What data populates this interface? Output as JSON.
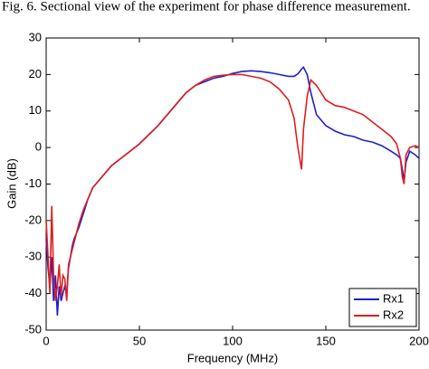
{
  "chart_data": {
    "type": "line",
    "caption": "Fig. 6.    Sectional view of the experiment for phase difference measurement.",
    "xlabel": "Frequency (MHz)",
    "ylabel": "Gain (dB)",
    "xlim": [
      0,
      200
    ],
    "ylim": [
      -50,
      30
    ],
    "xticks": [
      0,
      50,
      100,
      150,
      200
    ],
    "yticks": [
      -50,
      -40,
      -30,
      -20,
      -10,
      0,
      10,
      20,
      30
    ],
    "grid": false,
    "legend": "lower right",
    "x": [
      0,
      1,
      2,
      3,
      4,
      5,
      6,
      7,
      8,
      9,
      10,
      11,
      12,
      13,
      14,
      15,
      17.5,
      20,
      22.5,
      25,
      30,
      35,
      40,
      45,
      50,
      55,
      60,
      65,
      70,
      75,
      80,
      85,
      90,
      95,
      100,
      105,
      110,
      115,
      120,
      125,
      130,
      133,
      135,
      136,
      137,
      138,
      140,
      142,
      145,
      150,
      155,
      160,
      165,
      170,
      175,
      180,
      185,
      188,
      190,
      191,
      192,
      193,
      195,
      198,
      200
    ],
    "series": [
      {
        "name": "Rx1",
        "color": "#1f1fcc",
        "values": [
          -25,
          -33,
          -38,
          -30,
          -42,
          -35,
          -46,
          -38,
          -42,
          -40,
          -38,
          -40,
          -33,
          -30,
          -27,
          -25,
          -22,
          -18,
          -14,
          -11,
          -8,
          -5,
          -3,
          -1,
          1,
          3.5,
          6,
          9,
          12,
          15,
          17,
          18,
          19,
          19.5,
          20.3,
          20.8,
          21,
          20.8,
          20.5,
          20,
          19.5,
          19.5,
          20.2,
          20.8,
          21.5,
          22,
          20,
          15,
          9,
          6,
          4.5,
          3.5,
          3,
          2,
          1.5,
          0.5,
          -1,
          -2,
          -3,
          -6,
          -9,
          -4,
          -1,
          -2,
          -3
        ]
      },
      {
        "name": "Rx2",
        "color": "#dd1f1f",
        "values": [
          -20,
          -30,
          -40,
          -16,
          -35,
          -42,
          -38,
          -32,
          -41,
          -35,
          -36,
          -42,
          -32,
          -30,
          -28,
          -26,
          -21,
          -17,
          -14,
          -11,
          -8,
          -5,
          -3,
          -1,
          1,
          3.5,
          6,
          9,
          12,
          15,
          17,
          18.5,
          19.5,
          19.8,
          20,
          20,
          19.5,
          19,
          18,
          16,
          13,
          8,
          0,
          -3,
          -6,
          5,
          14,
          18.5,
          17,
          13,
          11.5,
          11,
          10,
          9,
          7,
          5,
          3,
          1,
          -3,
          -8,
          -10,
          -2,
          0,
          0.5,
          0
        ]
      }
    ]
  }
}
